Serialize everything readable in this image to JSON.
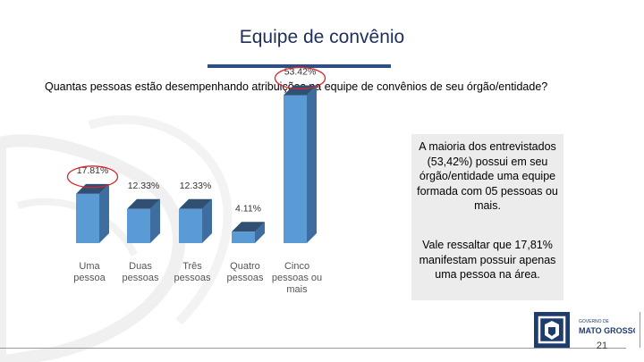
{
  "title": "Equipe de convênio",
  "question": "Quantas pessoas estão desempenhando atribuições na equipe de convênios de seu órgão/entidade?",
  "chart_data": {
    "type": "bar",
    "categories": [
      [
        "Uma",
        "pessoa"
      ],
      [
        "Duas",
        "pessoas"
      ],
      [
        "Três",
        "pessoas"
      ],
      [
        "Quatro",
        "pessoas"
      ],
      [
        "Cinco",
        "pessoas ou",
        "mais"
      ]
    ],
    "values": [
      17.81,
      12.33,
      12.33,
      4.11,
      53.42
    ],
    "data_labels": [
      "17.81%",
      "12.33%",
      "12.33%",
      "4.11%",
      "53.42%"
    ],
    "highlighted": [
      "17.81%",
      "53.42%"
    ],
    "bar_color": "#5b9bd5",
    "bar_side_color": "#3d6e9f",
    "bar_top_color": "#2f4f73",
    "highlight_color": "#d9262c",
    "grid": false,
    "ylim": [
      0,
      60
    ]
  },
  "notes": [
    "A maioria dos entrevistados (53,42%) possui em seu órgão/entidade uma equipe formada com 05 pessoas ou mais.",
    "Vale ressaltar que 17,81% manifestam possuir apenas uma pessoa na área."
  ],
  "footer": {
    "logo_small_text": "GOVERNO DE",
    "logo_main_text": "MATO GROSSO",
    "logo_color": "#1f3c6e",
    "page_number": "21"
  }
}
